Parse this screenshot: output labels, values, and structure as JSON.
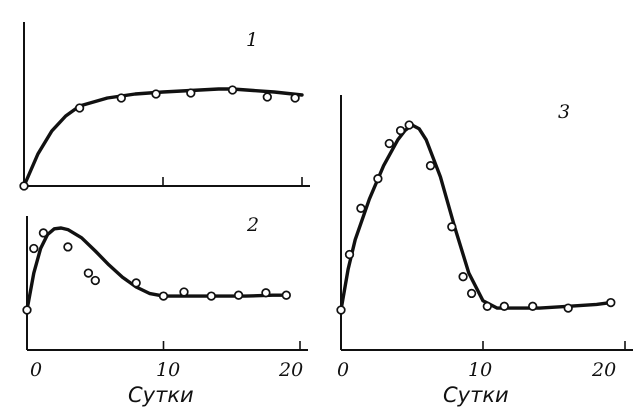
{
  "chart_data": [
    {
      "type": "line",
      "label": "1",
      "xlim": [
        0,
        20
      ],
      "ticks": [
        0,
        10,
        20
      ],
      "curve": [
        [
          0,
          0
        ],
        [
          1,
          0.32
        ],
        [
          2,
          0.55
        ],
        [
          3,
          0.7
        ],
        [
          4,
          0.8
        ],
        [
          6,
          0.88
        ],
        [
          8,
          0.92
        ],
        [
          10,
          0.94
        ],
        [
          12,
          0.955
        ],
        [
          14,
          0.97
        ],
        [
          15,
          0.97
        ],
        [
          16,
          0.96
        ],
        [
          18,
          0.94
        ],
        [
          20,
          0.91
        ]
      ],
      "points": [
        [
          0,
          0
        ],
        [
          4,
          0.78
        ],
        [
          7,
          0.88
        ],
        [
          9.5,
          0.92
        ],
        [
          12,
          0.93
        ],
        [
          15,
          0.96
        ],
        [
          17.5,
          0.89
        ],
        [
          19.5,
          0.88
        ]
      ]
    },
    {
      "type": "line",
      "label": "2",
      "xlim": [
        0,
        20
      ],
      "ticks": [
        0,
        10,
        20
      ],
      "curve": [
        [
          0,
          0
        ],
        [
          0.5,
          0.45
        ],
        [
          1,
          0.75
        ],
        [
          1.5,
          0.92
        ],
        [
          2,
          0.99
        ],
        [
          2.5,
          1.0
        ],
        [
          3,
          0.98
        ],
        [
          4,
          0.88
        ],
        [
          5,
          0.72
        ],
        [
          6,
          0.55
        ],
        [
          7,
          0.4
        ],
        [
          8,
          0.28
        ],
        [
          9,
          0.2
        ],
        [
          10,
          0.17
        ],
        [
          12,
          0.17
        ],
        [
          14,
          0.17
        ],
        [
          16,
          0.17
        ],
        [
          18,
          0.18
        ],
        [
          19,
          0.18
        ]
      ],
      "points": [
        [
          0,
          0
        ],
        [
          0.5,
          0.75
        ],
        [
          1.2,
          0.94
        ],
        [
          3,
          0.77
        ],
        [
          4.5,
          0.45
        ],
        [
          5,
          0.36
        ],
        [
          8,
          0.33
        ],
        [
          10,
          0.17
        ],
        [
          11.5,
          0.22
        ],
        [
          13.5,
          0.17
        ],
        [
          15.5,
          0.18
        ],
        [
          17.5,
          0.21
        ],
        [
          19,
          0.18
        ]
      ]
    },
    {
      "type": "line",
      "label": "3",
      "xlim": [
        0,
        20
      ],
      "ticks": [
        0,
        10,
        20
      ],
      "curve": [
        [
          0,
          0
        ],
        [
          0.5,
          0.22
        ],
        [
          1,
          0.38
        ],
        [
          2,
          0.6
        ],
        [
          3,
          0.78
        ],
        [
          4,
          0.92
        ],
        [
          4.5,
          0.97
        ],
        [
          5,
          1.0
        ],
        [
          5.5,
          0.98
        ],
        [
          6,
          0.92
        ],
        [
          7,
          0.72
        ],
        [
          8,
          0.45
        ],
        [
          9,
          0.2
        ],
        [
          10,
          0.05
        ],
        [
          11,
          0.01
        ],
        [
          14,
          0.01
        ],
        [
          16,
          0.02
        ],
        [
          18,
          0.03
        ],
        [
          19,
          0.04
        ]
      ],
      "points": [
        [
          0,
          0
        ],
        [
          0.6,
          0.3
        ],
        [
          1.4,
          0.55
        ],
        [
          2.6,
          0.71
        ],
        [
          3.4,
          0.9
        ],
        [
          4.2,
          0.97
        ],
        [
          4.8,
          1.0
        ],
        [
          6.3,
          0.78
        ],
        [
          7.8,
          0.45
        ],
        [
          8.6,
          0.18
        ],
        [
          9.2,
          0.09
        ],
        [
          10.3,
          0.02
        ],
        [
          11.5,
          0.02
        ],
        [
          13.5,
          0.02
        ],
        [
          16,
          0.01
        ],
        [
          19,
          0.04
        ]
      ]
    }
  ],
  "x_axis": {
    "tick_labels": [
      "0",
      "10",
      "20"
    ],
    "label": "Сутки"
  }
}
